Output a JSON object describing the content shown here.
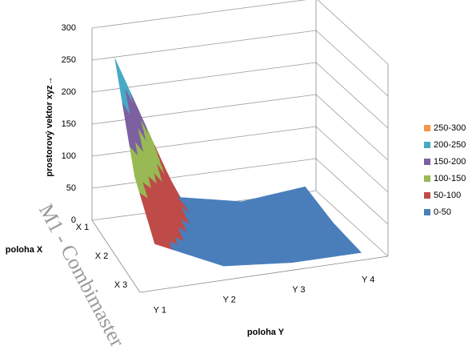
{
  "chart_data": {
    "type": "surface",
    "z_axis_label": "prostorový vektor xyz→",
    "x_axis_label": "poloha X",
    "y_axis_label": "poloha Y",
    "watermark": "M1 - Combimaster",
    "x_categories": [
      "X 1",
      "X 2",
      "X 3"
    ],
    "y_categories": [
      "Y 1",
      "Y 2",
      "Y 3",
      "Y 4"
    ],
    "z": [
      [
        260,
        30,
        10,
        20
      ],
      [
        120,
        30,
        5,
        5
      ],
      [
        60,
        10,
        0,
        0
      ]
    ],
    "zlim": [
      0,
      300
    ],
    "zticks": [
      0,
      50,
      100,
      150,
      200,
      250,
      300
    ],
    "grid": true,
    "legend_position": "right",
    "bands": [
      {
        "name": "0-50",
        "color": "#4a7ebb"
      },
      {
        "name": "50-100",
        "color": "#be4b48"
      },
      {
        "name": "100-150",
        "color": "#98b954"
      },
      {
        "name": "150-200",
        "color": "#7d60a0"
      },
      {
        "name": "200-250",
        "color": "#46aac5"
      },
      {
        "name": "250-300",
        "color": "#f79646"
      }
    ]
  }
}
